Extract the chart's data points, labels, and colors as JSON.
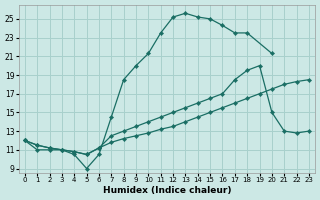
{
  "xlabel": "Humidex (Indice chaleur)",
  "bg_color": "#cce8e5",
  "grid_color": "#a8d0cc",
  "line_color": "#1a6e64",
  "xlim": [
    -0.5,
    23.5
  ],
  "ylim": [
    8.5,
    26.5
  ],
  "xticks": [
    0,
    1,
    2,
    3,
    4,
    5,
    6,
    7,
    8,
    9,
    10,
    11,
    12,
    13,
    14,
    15,
    16,
    17,
    18,
    19,
    20,
    21,
    22,
    23
  ],
  "yticks": [
    9,
    11,
    13,
    15,
    17,
    19,
    21,
    23,
    25
  ],
  "line1_x": [
    0,
    1,
    2,
    3,
    4,
    5,
    6,
    7,
    8,
    9,
    10,
    11,
    12,
    13,
    14,
    15,
    16,
    17,
    18,
    20
  ],
  "line1_y": [
    12,
    11,
    11,
    11,
    10.5,
    9,
    10.5,
    14.5,
    18.5,
    20,
    21.3,
    23.5,
    25.2,
    25.6,
    25.2,
    25,
    24.3,
    23.5,
    23.5,
    21.3
  ],
  "line2_x": [
    0,
    1,
    2,
    3,
    4,
    5,
    6,
    7,
    8,
    9,
    10,
    11,
    12,
    13,
    14,
    15,
    16,
    17,
    18,
    19,
    20,
    21,
    22,
    23
  ],
  "line2_y": [
    12,
    11.5,
    11.2,
    11,
    10.8,
    10.5,
    11.2,
    11.8,
    12.2,
    12.5,
    12.8,
    13.2,
    13.5,
    14,
    14.5,
    15,
    15.5,
    16,
    16.5,
    17,
    17.5,
    18,
    18.3,
    18.5
  ],
  "line3_x": [
    0,
    1,
    2,
    3,
    4,
    5,
    6,
    7,
    8,
    9,
    10,
    11,
    12,
    13,
    14,
    15,
    16,
    17,
    18,
    19,
    20,
    21,
    22,
    23
  ],
  "line3_y": [
    12,
    11.5,
    11.2,
    11,
    10.8,
    10.5,
    11.2,
    12.5,
    13,
    13.5,
    14,
    14.5,
    15,
    15.5,
    16,
    16.5,
    17,
    18.5,
    19.5,
    20,
    15,
    13,
    12.8,
    13
  ]
}
